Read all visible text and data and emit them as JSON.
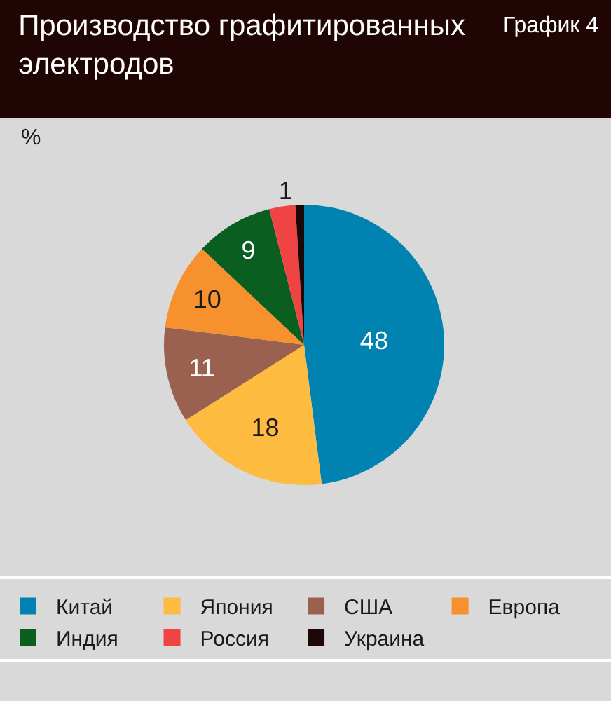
{
  "chart_data": {
    "type": "pie",
    "title": "Производство графитированных электродов",
    "annotations": [
      "График 4",
      "%"
    ],
    "categories": [
      "Китай",
      "Япония",
      "США",
      "Европа",
      "Индия",
      "Россия",
      "Украина"
    ],
    "values": [
      48,
      18,
      11,
      10,
      9,
      3,
      1
    ],
    "value_labels": [
      "48",
      "18",
      "11",
      "10",
      "9",
      null,
      "1"
    ],
    "colors": [
      "#0083b0",
      "#fdbb40",
      "#9a6150",
      "#f7912e",
      "#0a5e1f",
      "#f04343",
      "#1c0806"
    ],
    "legend": "bottom"
  }
}
